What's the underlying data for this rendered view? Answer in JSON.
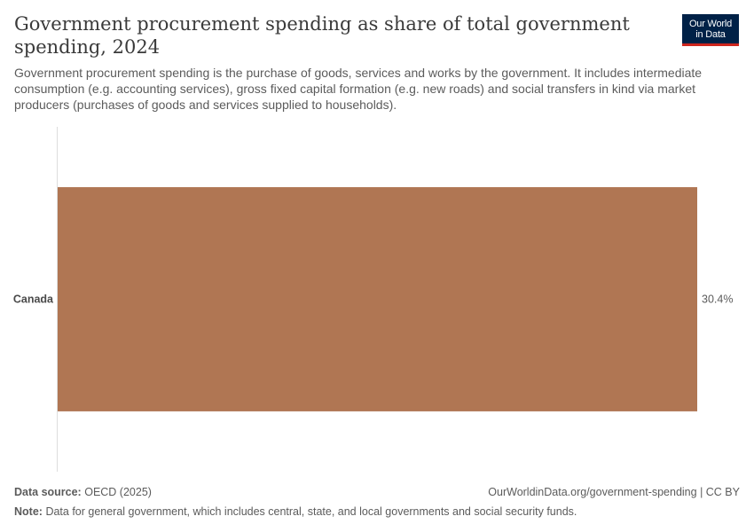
{
  "title": "Government procurement spending as share of total government spending, 2024",
  "subtitle": "Government procurement spending is the purchase of goods, services and works by the government. It includes intermediate consumption (e.g. accounting services), gross fixed capital formation (e.g. new roads) and social transfers in kind via market producers (purchases of goods and services supplied to households).",
  "logo": {
    "line1": "Our World",
    "line2": "in Data",
    "bg_color": "#002147",
    "accent_color": "#ce261e"
  },
  "chart_data": {
    "type": "bar",
    "orientation": "horizontal",
    "categories": [
      "Canada"
    ],
    "values": [
      30.4
    ],
    "value_labels": [
      "30.4%"
    ],
    "unit": "%",
    "bar_color": "#b07653",
    "xlim": [
      0,
      30.4
    ],
    "grid": false,
    "legend": "none"
  },
  "footer": {
    "source_label": "Data source:",
    "source_value": "OECD (2025)",
    "url": "OurWorldinData.org/government-spending | CC BY",
    "note_label": "Note:",
    "note_value": "Data for general government, which includes central, state, and local governments and social security funds."
  }
}
